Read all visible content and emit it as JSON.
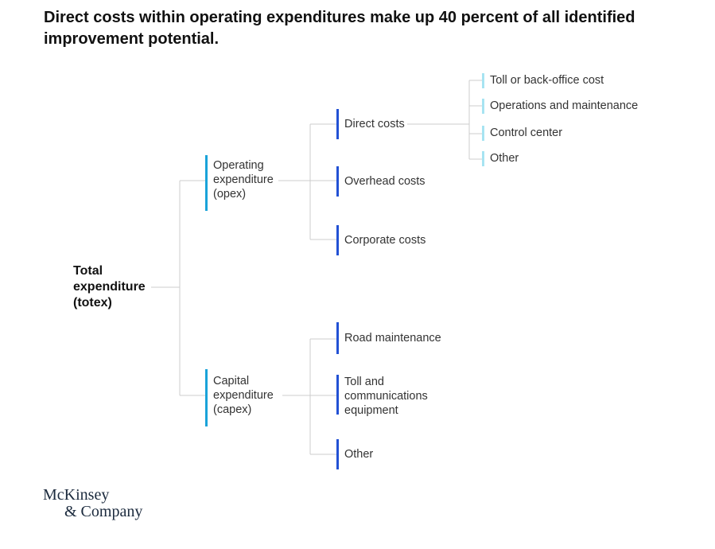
{
  "title": "Direct costs within operating expenditures make up 40 percent of all identified improvement potential.",
  "root": "Total\nexpenditure\n(totex)",
  "level2": {
    "opex": "Operating\nexpenditure\n(opex)",
    "capex": "Capital\nexpenditure\n(capex)"
  },
  "level3": {
    "direct": "Direct costs",
    "overhead": "Overhead costs",
    "corporate": "Corporate costs",
    "road": "Road maintenance",
    "toll_equipment": "Toll and\ncommunications\nequipment",
    "capex_other": "Other"
  },
  "level4": {
    "toll_backoffice": "Toll or back-office cost",
    "operations": "Operations and maintenance",
    "control_center": "Control center",
    "other": "Other"
  },
  "logo": {
    "line1": "McKinsey",
    "line2": "& Company"
  },
  "colors": {
    "level2_bar": "#1aa3d9",
    "level3_bar": "#2251d4",
    "level4_bar": "#a7e4f2",
    "connector": "#cccccc"
  }
}
